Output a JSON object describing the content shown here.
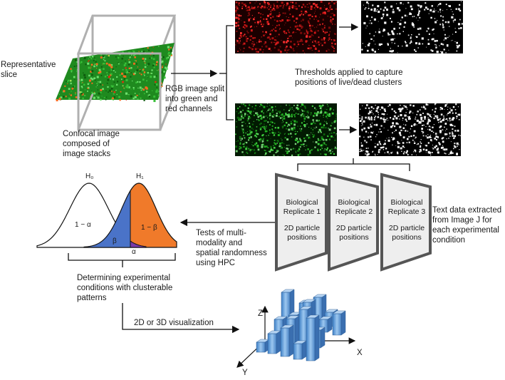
{
  "labels": {
    "representative_slice": "Representative\nslice",
    "confocal": "Confocal image\ncomposed of\nimage stacks",
    "rgb_split": "RGB image split\ninto green and\nred channels",
    "thresholds": "Thresholds applied to capture\npositions of live/dead clusters",
    "text_data": "Text data extracted\nfrom Image J for\neach experimental\ncondition",
    "tests": "Tests of multi-\nmodality and\nspatial randomness\nusing HPC",
    "determining": "Determining experimental\nconditions with clusterable\npatterns",
    "viz": "2D or 3D visualization"
  },
  "replicates": [
    {
      "title": "Biological\nReplicate 1",
      "sub": "2D particle\npositions"
    },
    {
      "title": "Biological\nReplicate 2",
      "sub": "2D particle\npositions"
    },
    {
      "title": "Biological\nReplicate 3",
      "sub": "2D particle\npositions"
    }
  ],
  "distribution": {
    "h0": "H₀",
    "h1": "H₁",
    "one_minus_alpha": "1 − α",
    "one_minus_beta": "1 − β",
    "beta": "β",
    "alpha": "α"
  },
  "axes": {
    "x": "X",
    "y": "Y",
    "z": "Z"
  },
  "colors": {
    "red_channel": "#d01818",
    "green_channel": "#22b022",
    "blue_area": "#4a73c8",
    "orange_area": "#f07a2a",
    "purple_area": "#7a3aa8",
    "bar_blue": "#7fb2e4"
  }
}
